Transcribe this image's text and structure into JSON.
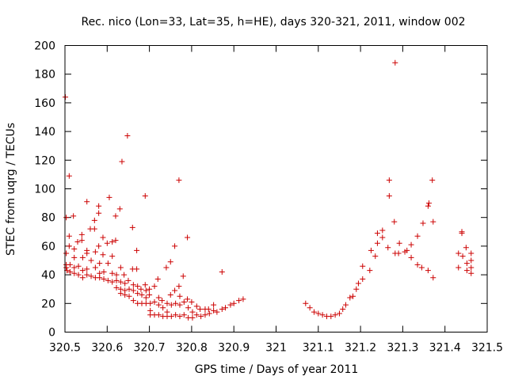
{
  "chart_data": {
    "type": "scatter",
    "title": "Rec. nico (Lon=33, Lat=35, h=HE), days 320-321, 2011, window 002",
    "xlabel": "GPS time / Days of year 2011",
    "ylabel": "STEC from uqrg / TECUs",
    "xlim": [
      320.5,
      321.5
    ],
    "ylim": [
      0,
      200
    ],
    "xticks": [
      320.5,
      320.6,
      320.7,
      320.8,
      320.9,
      321,
      321.1,
      321.2,
      321.3,
      321.4,
      321.5
    ],
    "xtick_labels": [
      "320.5",
      "320.6",
      "320.7",
      "320.8",
      "320.9",
      "321",
      "321.1",
      "321.2",
      "321.3",
      "321.4",
      "321.5"
    ],
    "yticks": [
      0,
      20,
      40,
      60,
      80,
      100,
      120,
      140,
      160,
      180,
      200
    ],
    "ytick_labels": [
      "0",
      "20",
      "40",
      "60",
      "80",
      "100",
      "120",
      "140",
      "160",
      "180",
      "200"
    ],
    "grid": false,
    "legend": "none",
    "marker": "plus",
    "color": "#cc0000",
    "points": [
      [
        320.501,
        164
      ],
      [
        320.503,
        80
      ],
      [
        320.503,
        55
      ],
      [
        320.503,
        47
      ],
      [
        320.503,
        45
      ],
      [
        320.505,
        43
      ],
      [
        320.51,
        109
      ],
      [
        320.51,
        67
      ],
      [
        320.51,
        60
      ],
      [
        320.512,
        47
      ],
      [
        320.512,
        42
      ],
      [
        320.52,
        81
      ],
      [
        320.522,
        58
      ],
      [
        320.522,
        52
      ],
      [
        320.522,
        45
      ],
      [
        320.522,
        41
      ],
      [
        320.53,
        63
      ],
      [
        320.532,
        46
      ],
      [
        320.532,
        40
      ],
      [
        320.54,
        68
      ],
      [
        320.54,
        64
      ],
      [
        320.542,
        52
      ],
      [
        320.542,
        43
      ],
      [
        320.542,
        38
      ],
      [
        320.552,
        91
      ],
      [
        320.552,
        57
      ],
      [
        320.552,
        55
      ],
      [
        320.552,
        44
      ],
      [
        320.552,
        40
      ],
      [
        320.56,
        72
      ],
      [
        320.562,
        50
      ],
      [
        320.562,
        39
      ],
      [
        320.57,
        78
      ],
      [
        320.57,
        72
      ],
      [
        320.572,
        56
      ],
      [
        320.572,
        45
      ],
      [
        320.572,
        38
      ],
      [
        320.58,
        88
      ],
      [
        320.58,
        83
      ],
      [
        320.58,
        60
      ],
      [
        320.582,
        48
      ],
      [
        320.582,
        41
      ],
      [
        320.582,
        38
      ],
      [
        320.59,
        66
      ],
      [
        320.59,
        54
      ],
      [
        320.592,
        42
      ],
      [
        320.592,
        37
      ],
      [
        320.6,
        62
      ],
      [
        320.602,
        48
      ],
      [
        320.602,
        36
      ],
      [
        320.605,
        94
      ],
      [
        320.612,
        63
      ],
      [
        320.612,
        53
      ],
      [
        320.612,
        41
      ],
      [
        320.612,
        35
      ],
      [
        320.62,
        81
      ],
      [
        320.62,
        64
      ],
      [
        320.622,
        40
      ],
      [
        320.622,
        36
      ],
      [
        320.622,
        31
      ],
      [
        320.63,
        86
      ],
      [
        320.632,
        45
      ],
      [
        320.632,
        35
      ],
      [
        320.632,
        30
      ],
      [
        320.632,
        27
      ],
      [
        320.635,
        119
      ],
      [
        320.64,
        40
      ],
      [
        320.642,
        34
      ],
      [
        320.642,
        29
      ],
      [
        320.642,
        26
      ],
      [
        320.648,
        137
      ],
      [
        320.65,
        36
      ],
      [
        320.652,
        30
      ],
      [
        320.652,
        25
      ],
      [
        320.66,
        73
      ],
      [
        320.66,
        44
      ],
      [
        320.662,
        33
      ],
      [
        320.662,
        29
      ],
      [
        320.662,
        22
      ],
      [
        320.67,
        57
      ],
      [
        320.67,
        44
      ],
      [
        320.672,
        32
      ],
      [
        320.672,
        27
      ],
      [
        320.672,
        20
      ],
      [
        320.68,
        30
      ],
      [
        320.682,
        26
      ],
      [
        320.682,
        20
      ],
      [
        320.69,
        95
      ],
      [
        320.69,
        33
      ],
      [
        320.692,
        29
      ],
      [
        320.692,
        24
      ],
      [
        320.692,
        20
      ],
      [
        320.7,
        30
      ],
      [
        320.7,
        26
      ],
      [
        320.702,
        20
      ],
      [
        320.702,
        15
      ],
      [
        320.702,
        12
      ],
      [
        320.712,
        32
      ],
      [
        320.712,
        21
      ],
      [
        320.712,
        12
      ],
      [
        320.72,
        37
      ],
      [
        320.722,
        24
      ],
      [
        320.722,
        19
      ],
      [
        320.722,
        12
      ],
      [
        320.73,
        22
      ],
      [
        320.732,
        17
      ],
      [
        320.732,
        11
      ],
      [
        320.74,
        45
      ],
      [
        320.742,
        20
      ],
      [
        320.742,
        14
      ],
      [
        320.742,
        11
      ],
      [
        320.75,
        49
      ],
      [
        320.75,
        26
      ],
      [
        320.752,
        19
      ],
      [
        320.752,
        11
      ],
      [
        320.76,
        60
      ],
      [
        320.76,
        29
      ],
      [
        320.762,
        20
      ],
      [
        320.762,
        12
      ],
      [
        320.77,
        106
      ],
      [
        320.77,
        32
      ],
      [
        320.772,
        25
      ],
      [
        320.772,
        19
      ],
      [
        320.772,
        11
      ],
      [
        320.78,
        39
      ],
      [
        320.782,
        21
      ],
      [
        320.782,
        12
      ],
      [
        320.79,
        66
      ],
      [
        320.79,
        23
      ],
      [
        320.792,
        17
      ],
      [
        320.792,
        10
      ],
      [
        320.8,
        21
      ],
      [
        320.802,
        14
      ],
      [
        320.802,
        10
      ],
      [
        320.812,
        18
      ],
      [
        320.812,
        12
      ],
      [
        320.82,
        16
      ],
      [
        320.822,
        11
      ],
      [
        320.832,
        16
      ],
      [
        320.832,
        12
      ],
      [
        320.84,
        16
      ],
      [
        320.842,
        13
      ],
      [
        320.852,
        19
      ],
      [
        320.852,
        15
      ],
      [
        320.86,
        14
      ],
      [
        320.872,
        42
      ],
      [
        320.872,
        16
      ],
      [
        320.88,
        17
      ],
      [
        320.892,
        19
      ],
      [
        320.9,
        20
      ],
      [
        320.912,
        22
      ],
      [
        320.922,
        23
      ],
      [
        321.07,
        20
      ],
      [
        321.08,
        17
      ],
      [
        321.09,
        14
      ],
      [
        321.1,
        13
      ],
      [
        321.11,
        12
      ],
      [
        321.12,
        11
      ],
      [
        321.13,
        11
      ],
      [
        321.14,
        12
      ],
      [
        321.15,
        13
      ],
      [
        321.158,
        16
      ],
      [
        321.165,
        19
      ],
      [
        321.175,
        24
      ],
      [
        321.182,
        25
      ],
      [
        321.19,
        30
      ],
      [
        321.195,
        34
      ],
      [
        321.205,
        37
      ],
      [
        321.205,
        46
      ],
      [
        321.222,
        43
      ],
      [
        321.225,
        57
      ],
      [
        321.235,
        53
      ],
      [
        321.24,
        62
      ],
      [
        321.24,
        69
      ],
      [
        321.252,
        66
      ],
      [
        321.252,
        71
      ],
      [
        321.265,
        59
      ],
      [
        321.268,
        95
      ],
      [
        321.268,
        106
      ],
      [
        321.28,
        77
      ],
      [
        321.282,
        55
      ],
      [
        321.282,
        188
      ],
      [
        321.29,
        55
      ],
      [
        321.292,
        62
      ],
      [
        321.305,
        56
      ],
      [
        321.31,
        57
      ],
      [
        321.32,
        52
      ],
      [
        321.32,
        61
      ],
      [
        321.335,
        47
      ],
      [
        321.335,
        67
      ],
      [
        321.345,
        45
      ],
      [
        321.348,
        76
      ],
      [
        321.36,
        43
      ],
      [
        321.36,
        88
      ],
      [
        321.362,
        90
      ],
      [
        321.37,
        106
      ],
      [
        321.372,
        38
      ],
      [
        321.372,
        77
      ],
      [
        321.432,
        55
      ],
      [
        321.432,
        45
      ],
      [
        321.44,
        69
      ],
      [
        321.44,
        70
      ],
      [
        321.442,
        53
      ],
      [
        321.45,
        59
      ],
      [
        321.452,
        48
      ],
      [
        321.452,
        43
      ],
      [
        321.462,
        55
      ],
      [
        321.462,
        50
      ],
      [
        321.462,
        45
      ],
      [
        321.462,
        41
      ]
    ]
  }
}
